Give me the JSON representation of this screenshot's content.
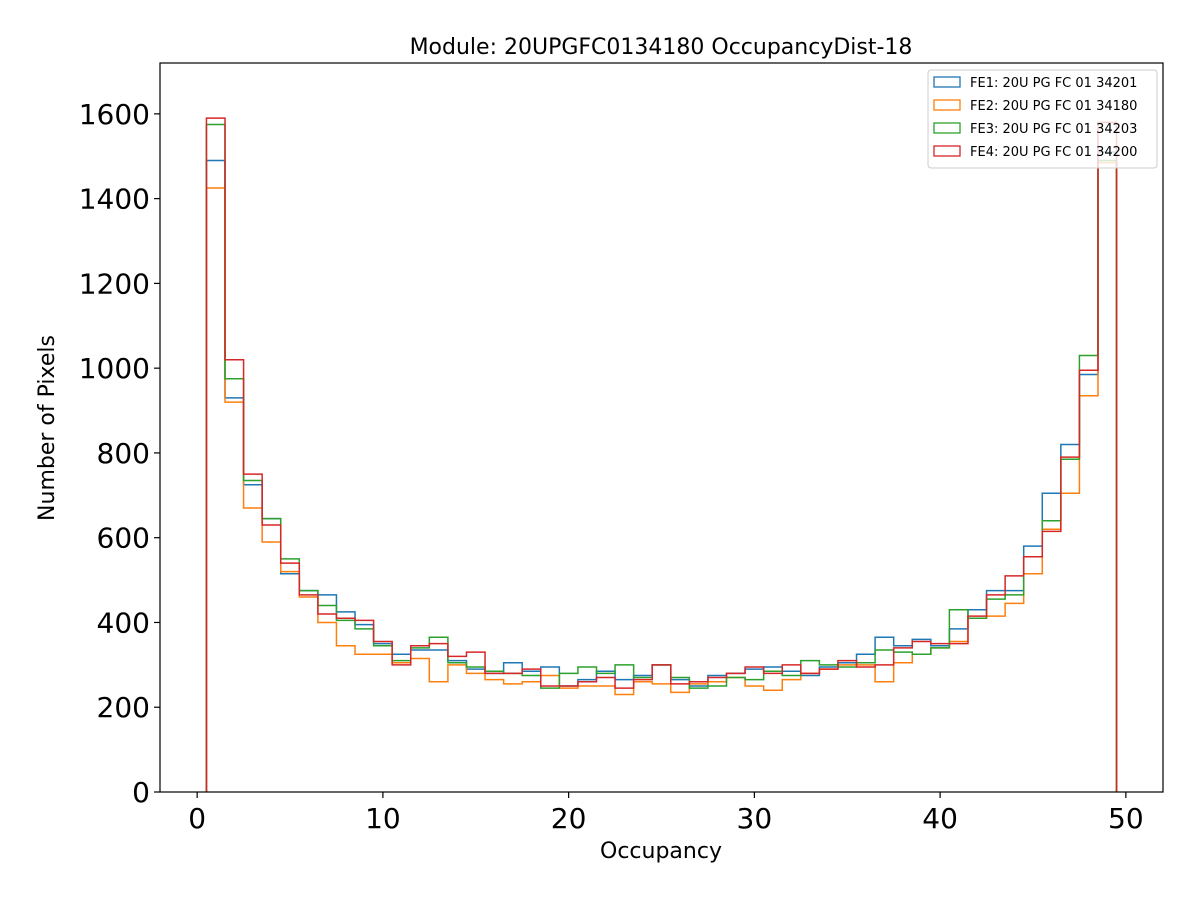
{
  "chart_data": {
    "type": "histogram-step",
    "title": "Module: 20UPGFC0134180 OccupancyDist-18",
    "xlabel": "Occupancy",
    "ylabel": "Number of Pixels",
    "xlim": [
      -2,
      52
    ],
    "ylim": [
      0,
      1720
    ],
    "xticks": [
      0,
      10,
      20,
      30,
      40,
      50
    ],
    "yticks": [
      0,
      200,
      400,
      600,
      800,
      1000,
      1200,
      1400,
      1600
    ],
    "bin_edges_start": 0.5,
    "bin_width": 1,
    "legend_position": "upper right",
    "series": [
      {
        "name": "FE1: 20U PG FC 01 34201",
        "color": "#1f77b4",
        "values": [
          1490,
          930,
          725,
          645,
          515,
          475,
          465,
          425,
          395,
          350,
          325,
          335,
          335,
          310,
          290,
          280,
          305,
          285,
          295,
          250,
          265,
          285,
          265,
          275,
          300,
          265,
          250,
          275,
          280,
          290,
          295,
          285,
          275,
          295,
          305,
          325,
          365,
          345,
          360,
          345,
          385,
          430,
          475,
          475,
          580,
          705,
          820,
          985,
          1510
        ]
      },
      {
        "name": "FE2: 20U PG FC 01 34180",
        "color": "#ff7f0e",
        "values": [
          1425,
          920,
          670,
          590,
          520,
          460,
          400,
          345,
          325,
          325,
          305,
          315,
          260,
          300,
          280,
          265,
          255,
          260,
          275,
          245,
          250,
          250,
          230,
          260,
          255,
          235,
          255,
          260,
          270,
          250,
          240,
          265,
          280,
          290,
          300,
          300,
          260,
          305,
          325,
          340,
          355,
          410,
          415,
          445,
          515,
          620,
          705,
          935,
          1485
        ]
      },
      {
        "name": "FE3: 20U PG FC 01 34203",
        "color": "#2ca02c",
        "values": [
          1575,
          975,
          735,
          645,
          550,
          475,
          440,
          405,
          385,
          345,
          310,
          340,
          365,
          305,
          295,
          285,
          280,
          275,
          245,
          280,
          295,
          280,
          300,
          270,
          300,
          270,
          245,
          250,
          270,
          265,
          285,
          275,
          310,
          300,
          295,
          305,
          335,
          330,
          325,
          340,
          430,
          410,
          455,
          465,
          555,
          640,
          785,
          1030,
          1490
        ]
      },
      {
        "name": "FE4: 20U PG FC 01 34200",
        "color": "#d62728",
        "values": [
          1590,
          1020,
          750,
          630,
          540,
          465,
          420,
          410,
          405,
          355,
          300,
          345,
          350,
          320,
          330,
          280,
          280,
          290,
          250,
          250,
          260,
          270,
          245,
          265,
          300,
          255,
          260,
          270,
          280,
          295,
          280,
          300,
          280,
          290,
          310,
          295,
          300,
          340,
          355,
          350,
          350,
          415,
          465,
          510,
          555,
          615,
          790,
          995,
          1580
        ]
      }
    ]
  }
}
